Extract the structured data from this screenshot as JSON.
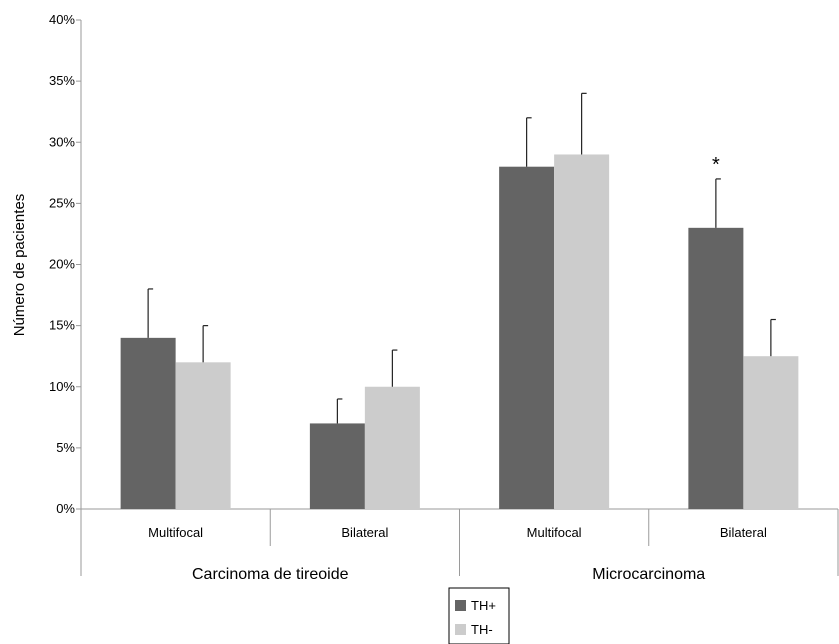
{
  "chart_data": {
    "type": "bar",
    "ylabel": "Número de pacientes",
    "ylim": [
      0,
      40
    ],
    "ytick_values": [
      0,
      5,
      10,
      15,
      20,
      25,
      30,
      35,
      40
    ],
    "ytick_labels": [
      "0%",
      "5%",
      "10%",
      "15%",
      "20%",
      "25%",
      "30%",
      "35%",
      "40%"
    ],
    "groups": [
      {
        "label": "Carcinoma de tireoide",
        "categories": [
          "Multifocal",
          "Bilateral"
        ]
      },
      {
        "label": "Microcarcinoma",
        "categories": [
          "Multifocal",
          "Bilateral"
        ]
      }
    ],
    "series": [
      {
        "name": "TH+",
        "color": "#646464",
        "values": [
          14,
          7,
          28,
          23
        ],
        "errors": [
          4,
          2,
          4,
          4
        ]
      },
      {
        "name": "TH-",
        "color": "#cccccc",
        "values": [
          12,
          10,
          29,
          12.5
        ],
        "errors": [
          3,
          3,
          5,
          3
        ]
      }
    ],
    "annotations": [
      {
        "text": "*",
        "category_index": 3,
        "series_index": 0
      }
    ],
    "legend_position": "bottom",
    "grid": false
  }
}
